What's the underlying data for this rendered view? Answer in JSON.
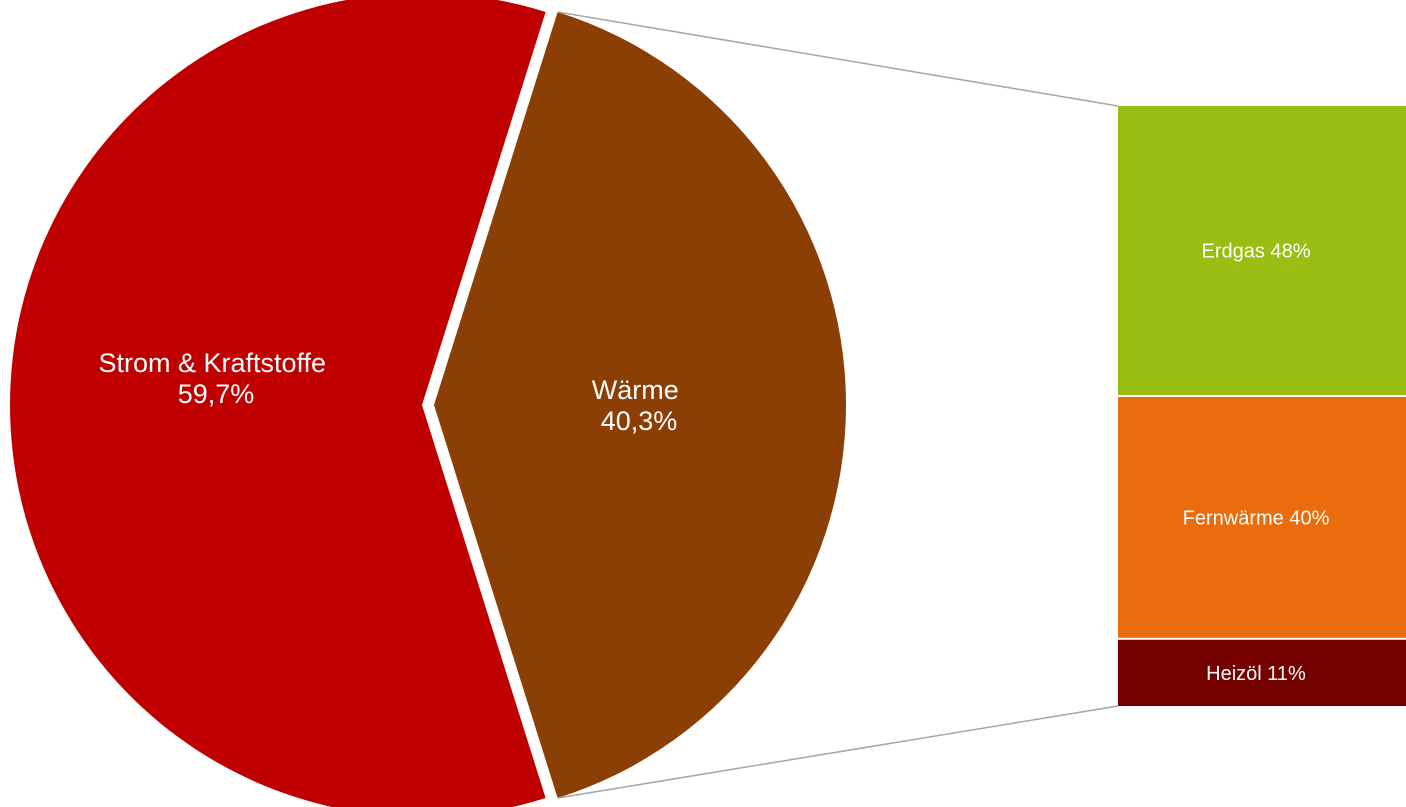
{
  "chart_data": {
    "type": "bar-of-pie",
    "pie": {
      "slices": [
        {
          "name": "Strom & Kraftstoffe",
          "value_label": "59,7%",
          "value": 59.7,
          "color": "#c00000"
        },
        {
          "name": "Wärme",
          "value_label": "40,3%",
          "value": 40.3,
          "color": "#8b3f05"
        }
      ]
    },
    "breakdown_of": "Wärme",
    "bar": {
      "segments": [
        {
          "name": "Erdgas",
          "value": 48,
          "label": "Erdgas 48%",
          "color": "#99bd10"
        },
        {
          "name": "Fernwärme",
          "value": 40,
          "label": "Fernwärme 40%",
          "color": "#ea6c0c"
        },
        {
          "name": "Heizöl",
          "value": 11,
          "label": "Heizöl 11%",
          "color": "#750000"
        }
      ]
    },
    "connector_color": "#a6a6a6"
  }
}
